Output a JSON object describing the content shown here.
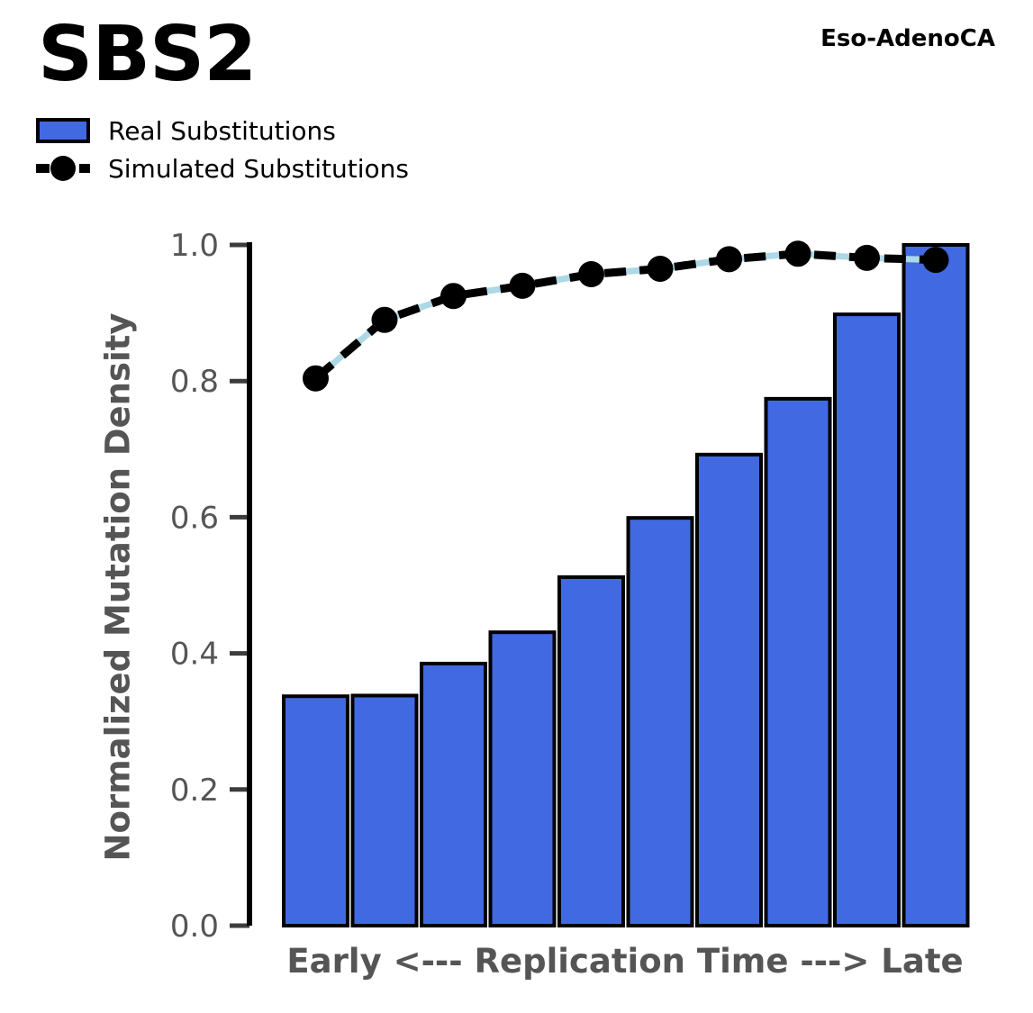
{
  "header": {
    "title": "SBS2",
    "cohort": "Eso-AdenoCA"
  },
  "chart_data": {
    "type": "bar",
    "title": "SBS2",
    "subtitle": "Eso-AdenoCA",
    "xlabel": "Early <--- Replication Time ---> Late",
    "ylabel": "Normalized Mutation Density",
    "ylim": [
      0.0,
      1.0
    ],
    "yticks": [
      "0.0",
      "0.2",
      "0.4",
      "0.6",
      "0.8",
      "1.0"
    ],
    "x_bins": 10,
    "grid": false,
    "legend_position": "upper-left-outside",
    "series": [
      {
        "name": "Real Substitutions",
        "type": "bar",
        "color": "#4169E1",
        "edge_color": "#000000",
        "values": [
          0.337,
          0.338,
          0.385,
          0.431,
          0.512,
          0.599,
          0.692,
          0.774,
          0.898,
          1.0
        ]
      },
      {
        "name": "Simulated Substitutions",
        "type": "line",
        "color": "#000000",
        "underlay_color": "#ADD8E6",
        "marker": "circle",
        "line_style": "dashed",
        "values": [
          0.804,
          0.89,
          0.925,
          0.94,
          0.957,
          0.965,
          0.979,
          0.987,
          0.981,
          0.978
        ]
      }
    ],
    "axis_text_color": "#555555",
    "spine_color": "#000000"
  }
}
